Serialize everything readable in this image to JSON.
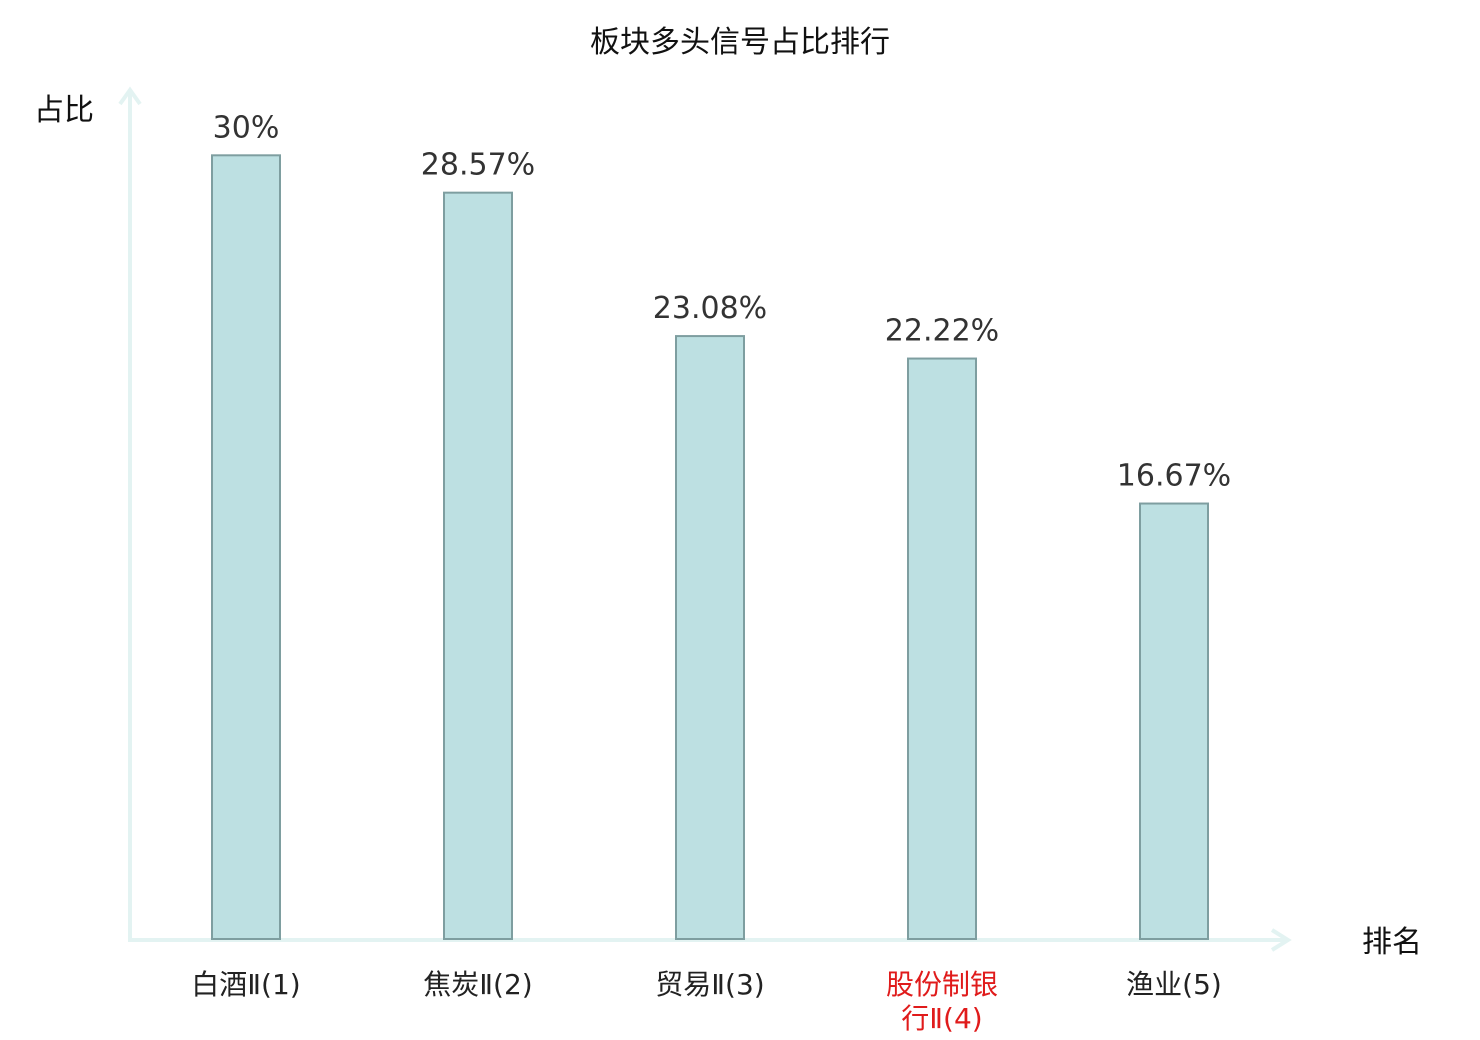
{
  "chart_data": {
    "type": "bar",
    "title": "板块多头信号占比排行",
    "xlabel": "排名",
    "ylabel": "占比",
    "ylim": [
      0,
      32.5
    ],
    "grid": false,
    "legend": "none",
    "categories": [
      [
        "白酒Ⅱ(1)"
      ],
      [
        "焦炭Ⅱ(2)"
      ],
      [
        "贸易Ⅱ(3)"
      ],
      [
        "股份制银",
        "行Ⅱ(4)"
      ],
      [
        "渔业(5)"
      ]
    ],
    "values": [
      30,
      28.57,
      23.08,
      22.22,
      16.67
    ],
    "value_labels": [
      "30%",
      "28.57%",
      "23.08%",
      "22.22%",
      "16.67%"
    ],
    "highlight_index": 3,
    "colors": {
      "bar_fill": "#bde0e2",
      "bar_stroke": "#7e9ea0",
      "axis": "#e3f3f2",
      "highlight_label": "#e01b1b",
      "label": "#222222",
      "value_label": "#333333"
    }
  }
}
